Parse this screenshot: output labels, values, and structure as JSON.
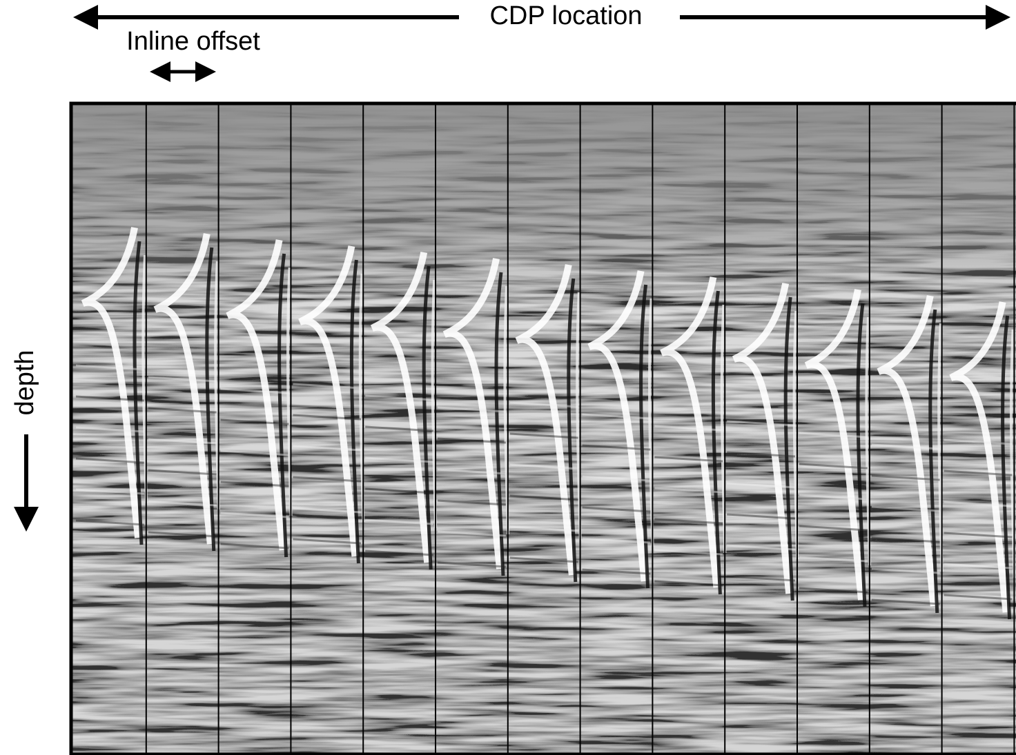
{
  "header": {
    "title": "CDP location",
    "subtitle": "Inline offset"
  },
  "axis": {
    "label": "depth"
  }
}
